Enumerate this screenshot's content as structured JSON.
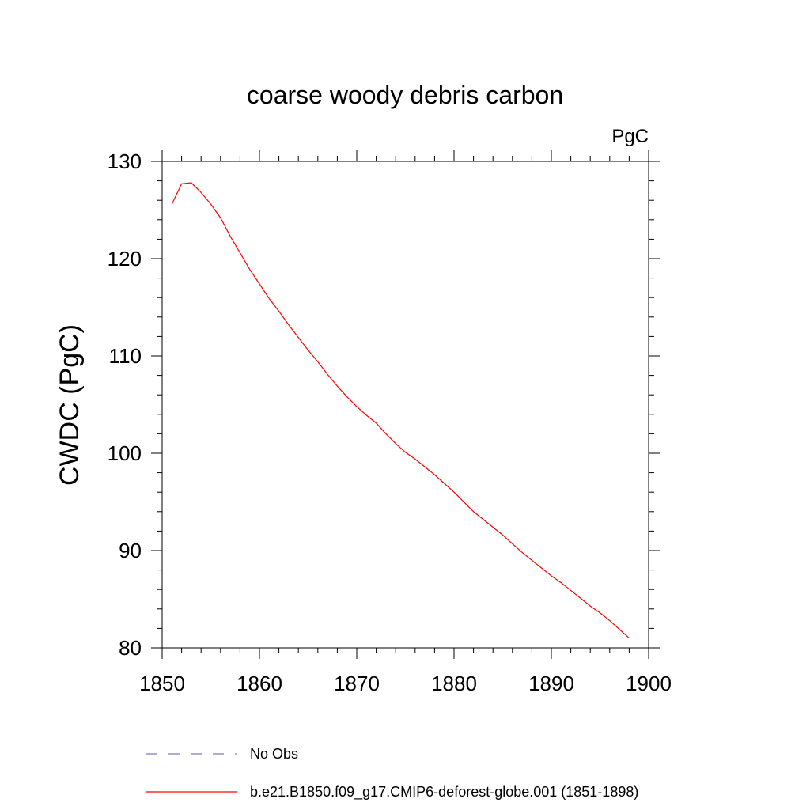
{
  "chart_data": {
    "type": "line",
    "title": "coarse woody debris carbon",
    "units_label": "PgC",
    "ylabel": "CWDC  (PgC)",
    "xlabel": "",
    "xlim": [
      1850,
      1900
    ],
    "ylim": [
      80,
      130
    ],
    "x_ticks": [
      1850,
      1860,
      1870,
      1880,
      1890,
      1900
    ],
    "y_ticks": [
      80,
      90,
      100,
      110,
      120,
      130
    ],
    "grid": false,
    "legend_position": "bottom",
    "series": [
      {
        "name": "No Obs",
        "color": "#7b7bbf",
        "style": "dashed",
        "x": [],
        "values": []
      },
      {
        "name": "b.e21.B1850.f09_g17.CMIP6-deforest-globe.001 (1851-1898)",
        "color": "#ff0000",
        "style": "solid",
        "x": [
          1851,
          1852,
          1853,
          1854,
          1855,
          1856,
          1857,
          1858,
          1859,
          1860,
          1861,
          1862,
          1863,
          1864,
          1865,
          1866,
          1867,
          1868,
          1869,
          1870,
          1871,
          1872,
          1873,
          1874,
          1875,
          1876,
          1877,
          1878,
          1879,
          1880,
          1881,
          1882,
          1883,
          1884,
          1885,
          1886,
          1887,
          1888,
          1889,
          1890,
          1891,
          1892,
          1893,
          1894,
          1895,
          1896,
          1897,
          1898
        ],
        "values": [
          125.6,
          127.7,
          127.8,
          126.8,
          125.6,
          124.2,
          122.3,
          120.6,
          118.9,
          117.4,
          115.9,
          114.6,
          113.2,
          111.9,
          110.6,
          109.4,
          108.1,
          106.9,
          105.8,
          104.8,
          103.9,
          103.1,
          102.0,
          101.0,
          100.1,
          99.4,
          98.6,
          97.8,
          96.9,
          96.0,
          95.0,
          94.0,
          93.2,
          92.4,
          91.6,
          90.7,
          89.8,
          89.0,
          88.2,
          87.4,
          86.7,
          85.9,
          85.1,
          84.3,
          83.6,
          82.8,
          81.9,
          81.0
        ]
      }
    ]
  }
}
